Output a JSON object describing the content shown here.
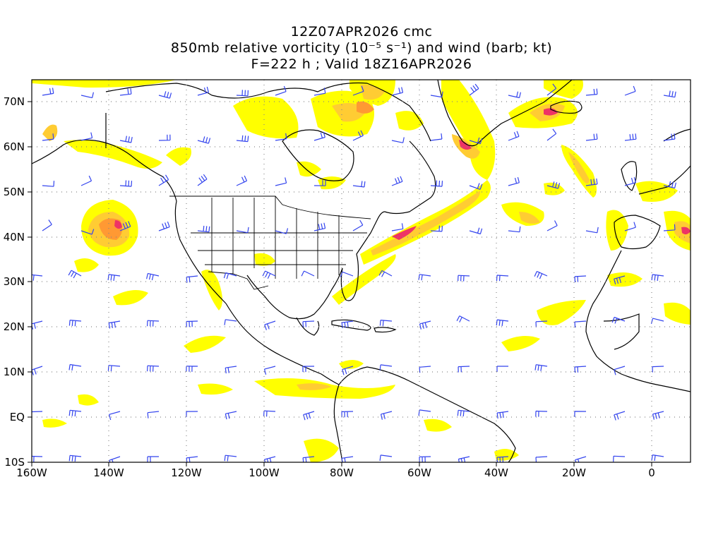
{
  "title": {
    "line1": "12Z07APR2026 cmc",
    "line2": "850mb relative vorticity (10⁻⁵ s⁻¹) and wind (barb; kt)",
    "line3": "F=222 h ; Valid 18Z16APR2026"
  },
  "axes": {
    "lat_labels": [
      "70N",
      "60N",
      "50N",
      "40N",
      "30N",
      "20N",
      "10N",
      "EQ",
      "10S"
    ],
    "lon_labels": [
      "160W",
      "140W",
      "120W",
      "100W",
      "80W",
      "60W",
      "40W",
      "20W",
      "0"
    ],
    "lat_range": [
      -10,
      75
    ],
    "lon_range": [
      -160,
      10
    ],
    "gridlines": "dotted"
  },
  "colors": {
    "vort_low": "#ffff00",
    "vort_mid": "#ffcc33",
    "vort_high": "#ff9933",
    "vort_max": "#ee3366",
    "barb": "#3344ee",
    "coast": "#000000",
    "grid": "#888888"
  }
}
